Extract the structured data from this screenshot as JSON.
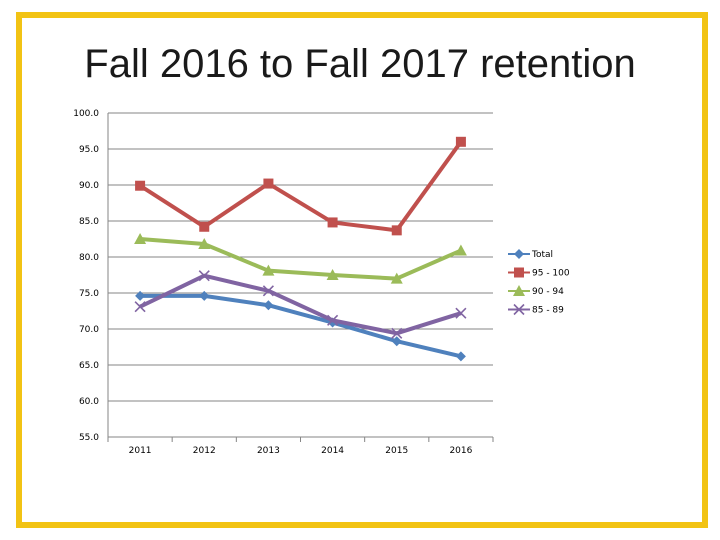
{
  "chart_data": {
    "type": "line",
    "title": "Fall 2016 to Fall 2017 retention",
    "xlabel": "",
    "ylabel": "",
    "categories": [
      "2011",
      "2012",
      "2013",
      "2014",
      "2015",
      "2016"
    ],
    "ylim": [
      55.0,
      100.0
    ],
    "yticks": [
      "55.0",
      "60.0",
      "65.0",
      "70.0",
      "75.0",
      "80.0",
      "85.0",
      "90.0",
      "95.0",
      "100.0"
    ],
    "grid": true,
    "legend_position": "right",
    "series": [
      {
        "name": "Total",
        "color": "#4f81bd",
        "marker": "diamond",
        "values": [
          74.6,
          74.6,
          73.3,
          70.9,
          68.3,
          66.2
        ]
      },
      {
        "name": "95 - 100",
        "color": "#c0504d",
        "marker": "square",
        "values": [
          89.9,
          84.2,
          90.2,
          84.8,
          83.7,
          96.0
        ]
      },
      {
        "name": "90 - 94",
        "color": "#9bbb59",
        "marker": "triangle",
        "values": [
          82.5,
          81.8,
          78.1,
          77.5,
          77.0,
          80.9
        ]
      },
      {
        "name": "85 - 89",
        "color": "#8064a2",
        "marker": "x",
        "values": [
          73.1,
          77.4,
          75.3,
          71.2,
          69.4,
          72.2
        ]
      }
    ]
  }
}
